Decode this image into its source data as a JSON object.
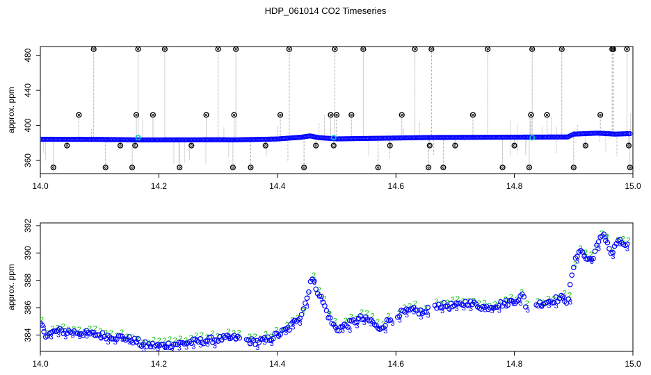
{
  "title": "HDP_061014  CO2 Timeseries",
  "colors": {
    "frame": "#000000",
    "series_blue": "#0000ff",
    "series_cyan": "#00c8c8",
    "series_green": "#00c000",
    "outlier": "#000000",
    "spike_line": "#999999"
  },
  "chart_data": [
    {
      "type": "scatter",
      "title": "",
      "xlabel": "",
      "ylabel": "approx. ppm",
      "xlim": [
        14.0,
        15.0
      ],
      "ylim": [
        345,
        490
      ],
      "xticks": [
        "14.0",
        "14.2",
        "14.4",
        "14.6",
        "14.8",
        "15.0"
      ],
      "yticks": [
        "360",
        "400",
        "440",
        "480"
      ],
      "xtick_values": [
        14.0,
        14.2,
        14.4,
        14.6,
        14.8,
        15.0
      ],
      "ytick_values": [
        360,
        400,
        440,
        480
      ],
      "grid": false,
      "baseline_profile": {
        "x": [
          14.0,
          14.1,
          14.17,
          14.3,
          14.33,
          14.4,
          14.44,
          14.455,
          14.47,
          14.5,
          14.6,
          14.66,
          14.8,
          14.89,
          14.9,
          14.94,
          14.97,
          14.99
        ],
        "y": [
          384.2,
          384.0,
          383.4,
          383.6,
          383.5,
          384.5,
          386.5,
          388.0,
          386.0,
          384.6,
          385.6,
          386.2,
          386.6,
          386.8,
          390.0,
          391.2,
          390.0,
          390.5
        ]
      },
      "cyan_points": {
        "x": [
          14.165,
          14.495,
          14.83
        ],
        "y": [
          386,
          386,
          386
        ]
      },
      "outliers": {
        "x": [
          14.022,
          14.045,
          14.065,
          14.09,
          14.11,
          14.135,
          14.155,
          14.16,
          14.162,
          14.165,
          14.19,
          14.21,
          14.235,
          14.255,
          14.28,
          14.3,
          14.325,
          14.327,
          14.33,
          14.355,
          14.38,
          14.405,
          14.42,
          14.445,
          14.465,
          14.49,
          14.495,
          14.497,
          14.5,
          14.525,
          14.545,
          14.57,
          14.59,
          14.61,
          14.632,
          14.655,
          14.657,
          14.66,
          14.68,
          14.7,
          14.73,
          14.755,
          14.78,
          14.8,
          14.825,
          14.828,
          14.83,
          14.855,
          14.88,
          14.9,
          14.92,
          14.945,
          14.965,
          14.967,
          14.99,
          14.993,
          14.995
        ],
        "y": [
          352,
          377,
          412,
          487,
          352,
          377,
          352,
          377,
          412,
          487,
          412,
          487,
          352,
          377,
          412,
          487,
          352,
          412,
          487,
          352,
          377,
          412,
          487,
          352,
          377,
          412,
          377,
          487,
          412,
          412,
          487,
          352,
          377,
          412,
          487,
          352,
          377,
          487,
          352,
          377,
          412,
          487,
          352,
          377,
          352,
          412,
          487,
          412,
          487,
          352,
          377,
          412,
          487,
          487,
          487,
          377,
          352
        ]
      }
    },
    {
      "type": "scatter",
      "title": "",
      "xlabel": "",
      "ylabel": "approx. ppm",
      "xlim": [
        14.0,
        15.0
      ],
      "ylim": [
        382.8,
        392.2
      ],
      "xticks": [
        "14.0",
        "14.2",
        "14.4",
        "14.6",
        "14.8",
        "15.0"
      ],
      "yticks": [
        "384",
        "386",
        "388",
        "390",
        "392"
      ],
      "xtick_values": [
        14.0,
        14.2,
        14.4,
        14.6,
        14.8,
        15.0
      ],
      "ytick_values": [
        384,
        386,
        388,
        390,
        392
      ],
      "grid": false,
      "point_label": "3",
      "green_label": "2",
      "series_profile": {
        "x": [
          14.0,
          14.01,
          14.03,
          14.06,
          14.1,
          14.14,
          14.165,
          14.17,
          14.2,
          14.24,
          14.26,
          14.3,
          14.33,
          14.36,
          14.38,
          14.4,
          14.42,
          14.44,
          14.45,
          14.457,
          14.465,
          14.475,
          14.49,
          14.5,
          14.52,
          14.54,
          14.56,
          14.57,
          14.6,
          14.63,
          14.65,
          14.66,
          14.7,
          14.72,
          14.75,
          14.8,
          14.815,
          14.82,
          14.86,
          14.88,
          14.89,
          14.9,
          14.91,
          14.92,
          14.93,
          14.94,
          14.95,
          14.96,
          14.965,
          14.97,
          14.98,
          14.99
        ],
        "y": [
          384.8,
          384.0,
          384.3,
          384.2,
          384.0,
          383.8,
          383.5,
          383.3,
          383.2,
          383.4,
          383.5,
          383.7,
          383.8,
          383.5,
          383.6,
          384.0,
          384.5,
          385.5,
          386.7,
          388.2,
          387.5,
          386.6,
          385.0,
          384.4,
          384.8,
          385.2,
          385.0,
          384.4,
          385.5,
          385.8,
          385.6,
          386.2,
          386.1,
          386.4,
          386.0,
          386.5,
          386.9,
          386.0,
          386.5,
          386.7,
          386.5,
          389.0,
          390.4,
          389.6,
          389.5,
          390.5,
          391.5,
          390.4,
          389.7,
          390.7,
          390.8,
          390.5
        ]
      }
    }
  ]
}
